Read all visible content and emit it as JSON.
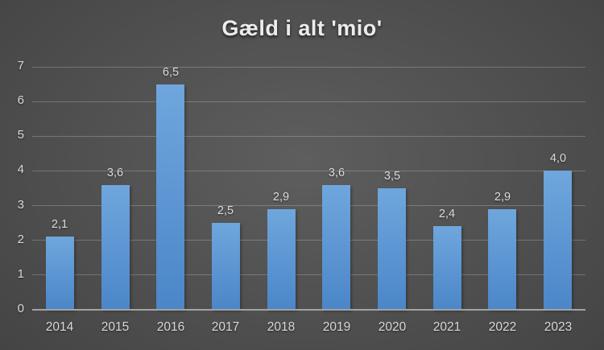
{
  "chart_data": {
    "type": "bar",
    "title": "Gæld i alt 'mio'",
    "categories": [
      "2014",
      "2015",
      "2016",
      "2017",
      "2018",
      "2019",
      "2020",
      "2021",
      "2022",
      "2023"
    ],
    "values": [
      2.1,
      3.6,
      6.5,
      2.5,
      2.9,
      3.6,
      3.5,
      2.4,
      2.9,
      4.0
    ],
    "value_labels": [
      "2,1",
      "3,6",
      "6,5",
      "2,5",
      "2,9",
      "3,6",
      "3,5",
      "2,4",
      "2,9",
      "4,0"
    ],
    "xlabel": "",
    "ylabel": "",
    "ylim": [
      0,
      7
    ],
    "yticks": [
      0,
      1,
      2,
      3,
      4,
      5,
      6,
      7
    ],
    "grid": true,
    "legend_position": "none",
    "colors": {
      "bar_top": "#6FA6DD",
      "bar_bottom": "#4B86C8",
      "gridline": "rgba(255,255,255,0.22)",
      "axis_line": "#A3A3A3",
      "tick_label": "#D9D9D9",
      "value_label": "#DCDCDC",
      "title": "#ECECEC",
      "bg_center": "#5E5E5E",
      "bg_mid": "#454545",
      "bg_edge": "#252525"
    }
  }
}
